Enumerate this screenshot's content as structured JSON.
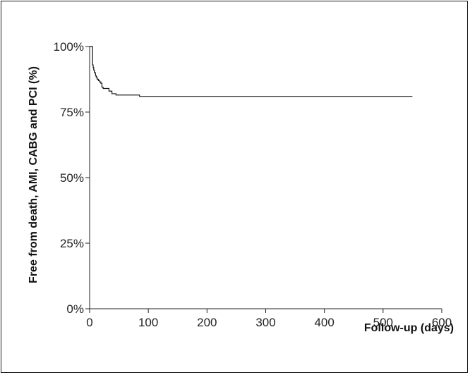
{
  "chart_data": {
    "type": "line",
    "title": "",
    "xlabel": "Follow-up (days)",
    "ylabel": "Free from death, AMI, CABG and PCI (%)",
    "xlim": [
      0,
      600
    ],
    "ylim": [
      0,
      100
    ],
    "x_ticks": [
      0,
      100,
      200,
      300,
      400,
      500,
      600
    ],
    "x_tick_labels": [
      "0",
      "100",
      "200",
      "300",
      "400",
      "500",
      "600"
    ],
    "y_ticks": [
      0,
      25,
      50,
      75,
      100
    ],
    "y_tick_labels": [
      "0%",
      "25%",
      "50%",
      "75%",
      "100%"
    ],
    "grid": false,
    "step": true,
    "series": [
      {
        "x": [
          0,
          5,
          5,
          6,
          7,
          8,
          10,
          11,
          12,
          13,
          15,
          17,
          19,
          21,
          23,
          30,
          33,
          38,
          45,
          85,
          550
        ],
        "y": [
          100,
          100,
          93,
          92,
          91,
          90,
          89,
          88.5,
          88,
          87.5,
          87,
          86.5,
          86,
          84.5,
          84,
          84,
          83,
          82,
          81.5,
          81,
          81
        ]
      }
    ]
  }
}
